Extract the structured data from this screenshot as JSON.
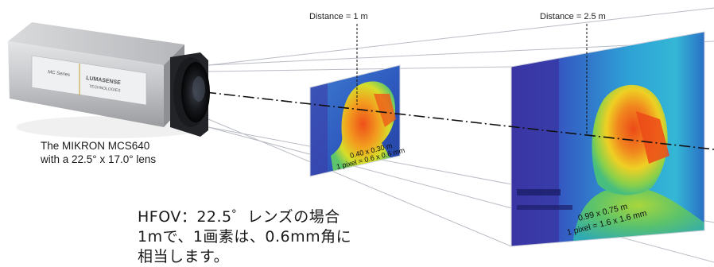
{
  "labels": {
    "distance_1": "Distance = 1 m",
    "distance_2": "Distance = 2.5 m"
  },
  "camera": {
    "caption_line1": "The MIKRON MCS640",
    "caption_line2": "with a 22.5° x 17.0° lens",
    "brand_left": "MC Series",
    "brand_right": "LUMASENSE",
    "brand_sub": "TECHNOLOGIES"
  },
  "panel_near": {
    "size_text": "0.40 x 0.30 m",
    "pixel_text": "1 pixel = 0.6 x 0.6 mm"
  },
  "panel_far": {
    "size_text": "0.99 x 0.75 m",
    "pixel_text": "1 pixel = 1.6 x 1.6 mm"
  },
  "note": {
    "line1": "HFOV：22.5゜レンズの場合",
    "line2": "1mで、1画素は、0.6mm角に",
    "line3": "相当します。"
  },
  "colors": {
    "thermal_background": "#2a3fa0",
    "thermal_face_hot": "#e8541c",
    "thermal_face_warm": "#f0c81e",
    "thermal_mid": "#5fc86a",
    "camera_body": "#c4c6c9",
    "lens": "#1c1c1c"
  }
}
